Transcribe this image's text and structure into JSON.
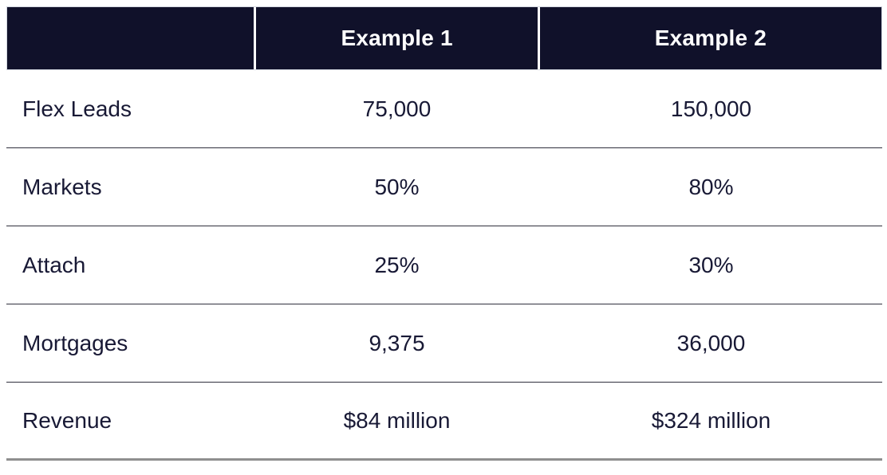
{
  "chart_data": {
    "type": "table",
    "title": "",
    "columns": [
      "",
      "Example 1",
      "Example 2"
    ],
    "rows": [
      [
        "Flex Leads",
        "75,000",
        "150,000"
      ],
      [
        "Markets",
        "50%",
        "80%"
      ],
      [
        "Attach",
        "25%",
        "30%"
      ],
      [
        "Mortgages",
        "9,375",
        "36,000"
      ],
      [
        "Revenue",
        "$84 million",
        "$324 million"
      ]
    ],
    "layout": {
      "header_alignment": "center",
      "label_column_alignment": "left",
      "value_columns_alignment": "center"
    },
    "colors": {
      "header_background": "#10112a",
      "header_text": "#ffffff",
      "body_text": "#181935",
      "row_divider": "#30303d",
      "bottom_border": "#8f8f8f",
      "header_outline": "#d3d7e0",
      "page_background": "#ffffff"
    }
  }
}
